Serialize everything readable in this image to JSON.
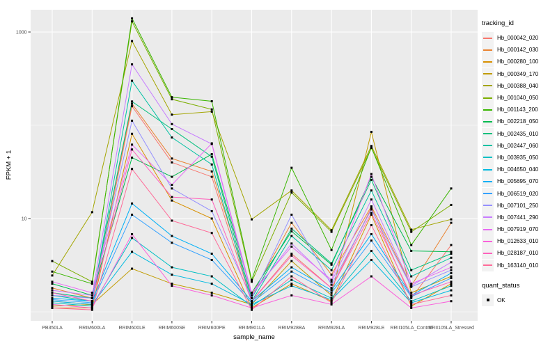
{
  "legend": {
    "tracking_title": "tracking_id",
    "quant_title": "quant_status",
    "quant_items": [
      {
        "label": "OK",
        "shape": "filled-black-square"
      }
    ]
  },
  "theme": {
    "panel_bg": "#ebebeb",
    "grid_color": "#ffffff",
    "tick_color": "#333333",
    "axis_text_color": "#4d4d4d",
    "point_color": "#000000"
  },
  "chart_data": {
    "type": "line",
    "title": "",
    "xlabel": "sample_name",
    "ylabel": "FPKM + 1",
    "y_scale": "log10",
    "y_ticks": [
      10,
      1000
    ],
    "y_minor_ticks": [
      1,
      100
    ],
    "ylim": [
      0.9,
      1800
    ],
    "grid": true,
    "legend_position": "right",
    "point_shape": "filled-square-black",
    "categories": [
      "PB350LA",
      "RRIM600LA",
      "RRIM600LE",
      "RRIM600SE",
      "RRIM600PE",
      "RRIM901LA",
      "RRIM928BA",
      "RRIM928LA",
      "RRIM928LE",
      "RRII105LA_Control",
      "RRII105LA_Stressed"
    ],
    "series": [
      {
        "name": "Hb_000042_020",
        "color": "#F8766D",
        "values": [
          1.3,
          1.2,
          160,
          40,
          28,
          1.3,
          4.2,
          1.8,
          13.0,
          1.4,
          5.2
        ]
      },
      {
        "name": "Hb_000142_030",
        "color": "#EA8331",
        "values": [
          1.8,
          1.4,
          170,
          44,
          32,
          1.5,
          9.0,
          2.5,
          13.5,
          1.9,
          9.0
        ]
      },
      {
        "name": "Hb_000280_100",
        "color": "#D89000",
        "values": [
          1.1,
          1.1,
          81,
          15.6,
          10.0,
          1.1,
          2.0,
          1.3,
          11.0,
          1.15,
          2.0
        ]
      },
      {
        "name": "Hb_000349_170",
        "color": "#C09B00",
        "values": [
          1.15,
          1.2,
          2.9,
          2.0,
          1.6,
          1.2,
          3.5,
          1.5,
          85.0,
          1.6,
          2.4
        ]
      },
      {
        "name": "Hb_000388_040",
        "color": "#A3A500",
        "values": [
          2.45,
          11.7,
          800,
          130,
          140,
          9.8,
          20.0,
          7.5,
          60.0,
          7.6,
          9.8
        ]
      },
      {
        "name": "Hb_001040_050",
        "color": "#7CAE00",
        "values": [
          3.5,
          2.1,
          1300,
          190,
          148,
          2.1,
          19.0,
          7.2,
          57.0,
          7.2,
          14.0
        ]
      },
      {
        "name": "Hb_001143_200",
        "color": "#39B600",
        "values": [
          2.7,
          2.0,
          1400,
          200,
          181,
          2.2,
          35.0,
          4.6,
          58.0,
          5.2,
          21.0
        ]
      },
      {
        "name": "Hb_002218_050",
        "color": "#00BB4E",
        "values": [
          2.0,
          1.5,
          45,
          28,
          49,
          1.6,
          7.3,
          3.2,
          28.0,
          4.5,
          4.4
        ]
      },
      {
        "name": "Hb_002435_010",
        "color": "#00BF7D",
        "values": [
          1.6,
          1.4,
          180,
          91,
          46,
          1.4,
          7.8,
          3.3,
          26.0,
          2.8,
          4.2
        ]
      },
      {
        "name": "Hb_002447_060",
        "color": "#00C1A3",
        "values": [
          1.5,
          1.3,
          300,
          74,
          38,
          1.3,
          6.5,
          2.8,
          20.0,
          2.4,
          3.8
        ]
      },
      {
        "name": "Hb_003935_050",
        "color": "#00BFC4",
        "values": [
          1.25,
          1.15,
          6.2,
          3.0,
          2.4,
          1.15,
          2.2,
          1.4,
          4.5,
          1.3,
          1.9
        ]
      },
      {
        "name": "Hb_004650_040",
        "color": "#00BAE0",
        "values": [
          1.3,
          1.2,
          4.4,
          2.5,
          2.0,
          1.2,
          1.9,
          1.35,
          3.6,
          1.25,
          1.7
        ]
      },
      {
        "name": "Hb_005695_070",
        "color": "#00B0F6",
        "values": [
          1.4,
          1.3,
          14.5,
          6.5,
          4.2,
          1.3,
          3.0,
          1.7,
          6.8,
          1.5,
          2.6
        ]
      },
      {
        "name": "Hb_006519_020",
        "color": "#35A2FF",
        "values": [
          1.35,
          1.25,
          11.0,
          5.5,
          3.6,
          1.25,
          2.7,
          1.6,
          5.8,
          1.45,
          2.3
        ]
      },
      {
        "name": "Hb_007101_250",
        "color": "#9590FF",
        "values": [
          1.5,
          1.4,
          112,
          21,
          12.0,
          1.4,
          11.0,
          1.95,
          12.5,
          1.85,
          2.8
        ]
      },
      {
        "name": "Hb_007441_290",
        "color": "#C77CFF",
        "values": [
          1.7,
          1.5,
          450,
          103,
          63,
          1.5,
          5.4,
          2.1,
          16.0,
          1.9,
          3.4
        ]
      },
      {
        "name": "Hb_007919_070",
        "color": "#E76BF3",
        "values": [
          2.1,
          1.6,
          62,
          23,
          64,
          1.6,
          5.0,
          2.2,
          30.0,
          2.0,
          3.0
        ]
      },
      {
        "name": "Hb_012633_010",
        "color": "#FA62DB",
        "values": [
          1.2,
          1.1,
          6.8,
          1.9,
          1.5,
          1.1,
          1.5,
          1.2,
          2.4,
          1.1,
          1.3
        ]
      },
      {
        "name": "Hb_028187_010",
        "color": "#FF62BC",
        "values": [
          1.6,
          1.3,
          55,
          17,
          16.0,
          1.3,
          4.0,
          1.8,
          11.5,
          1.5,
          2.1
        ]
      },
      {
        "name": "Hb_163140_010",
        "color": "#FF6A98",
        "values": [
          1.1,
          1.05,
          34,
          9.5,
          7.0,
          1.05,
          2.4,
          1.25,
          8.5,
          1.2,
          1.5
        ]
      }
    ]
  }
}
